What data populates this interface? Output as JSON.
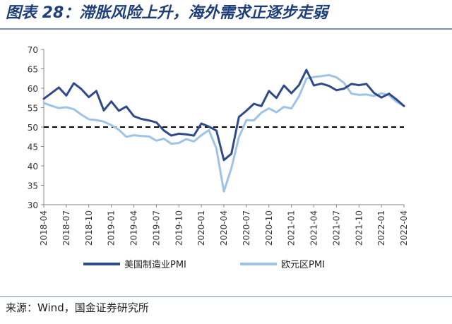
{
  "figure": {
    "title": "图表 28：滞胀风险上升，海外需求正逐步走弱",
    "source_prefix": "来源：",
    "source_text": "Wind，国金证券研究所"
  },
  "chart_data": {
    "type": "line",
    "x": [
      "2018-04",
      "2018-05",
      "2018-06",
      "2018-07",
      "2018-08",
      "2018-09",
      "2018-10",
      "2018-11",
      "2018-12",
      "2019-01",
      "2019-02",
      "2019-03",
      "2019-04",
      "2019-05",
      "2019-06",
      "2019-07",
      "2019-08",
      "2019-09",
      "2019-10",
      "2019-11",
      "2019-12",
      "2020-01",
      "2020-02",
      "2020-03",
      "2020-04",
      "2020-05",
      "2020-06",
      "2020-07",
      "2020-08",
      "2020-09",
      "2020-10",
      "2020-11",
      "2020-12",
      "2021-01",
      "2021-02",
      "2021-03",
      "2021-04",
      "2021-05",
      "2021-06",
      "2021-07",
      "2021-08",
      "2021-09",
      "2021-10",
      "2021-11",
      "2021-12",
      "2022-01",
      "2022-02",
      "2022-03",
      "2022-04"
    ],
    "xticks": [
      "2018-04",
      "2018-07",
      "2018-10",
      "2019-01",
      "2019-04",
      "2019-07",
      "2019-10",
      "2020-01",
      "2020-04",
      "2020-07",
      "2020-10",
      "2021-01",
      "2021-04",
      "2021-07",
      "2021-10",
      "2022-01",
      "2022-04"
    ],
    "ylim": [
      30,
      70
    ],
    "yticks": [
      30,
      35,
      40,
      45,
      50,
      55,
      60,
      65,
      70
    ],
    "reference_line": 50,
    "series": [
      {
        "name": "美国制造业PMI",
        "color": "#2e4a8a",
        "values": [
          57.3,
          58.7,
          60.2,
          58.1,
          61.3,
          59.8,
          57.7,
          59.3,
          54.3,
          56.6,
          54.2,
          55.3,
          52.8,
          52.1,
          51.7,
          51.2,
          49.1,
          47.8,
          48.3,
          48.1,
          47.8,
          50.9,
          50.1,
          49.1,
          41.5,
          43.1,
          52.6,
          54.2,
          56.0,
          55.4,
          59.3,
          57.5,
          60.7,
          58.7,
          60.8,
          64.7,
          60.7,
          61.2,
          60.6,
          59.5,
          59.9,
          61.1,
          60.8,
          61.1,
          58.8,
          57.6,
          58.6,
          57.1,
          55.4
        ]
      },
      {
        "name": "欧元区PMI",
        "color": "#9ec3e6",
        "values": [
          56.2,
          55.5,
          54.9,
          55.1,
          54.6,
          53.2,
          52.0,
          51.8,
          51.4,
          50.5,
          49.3,
          47.5,
          47.9,
          47.7,
          47.6,
          46.5,
          47.0,
          45.7,
          45.9,
          46.9,
          46.3,
          47.9,
          49.2,
          44.5,
          33.4,
          39.4,
          47.4,
          51.8,
          51.7,
          53.7,
          54.8,
          53.8,
          55.2,
          54.8,
          57.9,
          62.5,
          62.9,
          63.1,
          63.4,
          62.8,
          61.4,
          58.6,
          58.3,
          58.4,
          58.0,
          58.7,
          58.2,
          56.5,
          55.5
        ]
      }
    ]
  }
}
